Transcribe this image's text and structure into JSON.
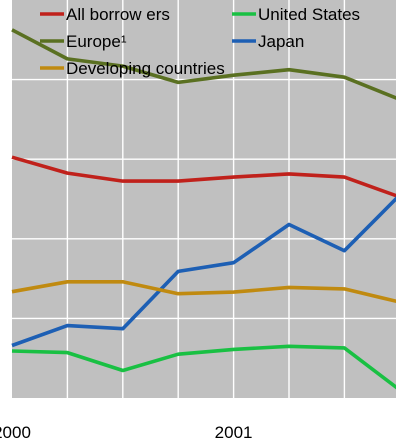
{
  "chart_data": {
    "type": "line",
    "title": "",
    "xlabel": "",
    "ylabel": "",
    "x": [
      0,
      1,
      2,
      3,
      4,
      5,
      6,
      7
    ],
    "x_tick_labels": [
      {
        "x": 0,
        "label": "2000"
      },
      {
        "x": 4,
        "label": "2001"
      }
    ],
    "ylim": [
      0,
      100
    ],
    "y_gridlines": [
      20,
      40,
      60,
      80
    ],
    "grid": true,
    "legend": {
      "placement": "top"
    },
    "series": [
      {
        "name": "All borrow ers",
        "color": "#c0211b",
        "values": [
          60.5,
          56.5,
          54.5,
          54.5,
          55.5,
          56.3,
          55.5,
          50.5
        ]
      },
      {
        "name": "United States",
        "color": "#19c043",
        "values": [
          11.8,
          11.4,
          6.9,
          11.0,
          12.2,
          13.0,
          12.6,
          2.0
        ]
      },
      {
        "name": "Europe¹",
        "color": "#5a7021",
        "values": [
          92.5,
          85.2,
          83.4,
          79.3,
          81.1,
          82.5,
          80.6,
          75.0
        ]
      },
      {
        "name": "Japan",
        "color": "#1d5fb4",
        "values": [
          13.2,
          18.2,
          17.4,
          31.8,
          34.0,
          43.6,
          37.0,
          51.0
        ]
      },
      {
        "name": "Developing countries",
        "color": "#c08a10",
        "values": [
          26.7,
          29.2,
          29.2,
          26.2,
          26.6,
          27.8,
          27.4,
          24.1
        ]
      }
    ]
  }
}
